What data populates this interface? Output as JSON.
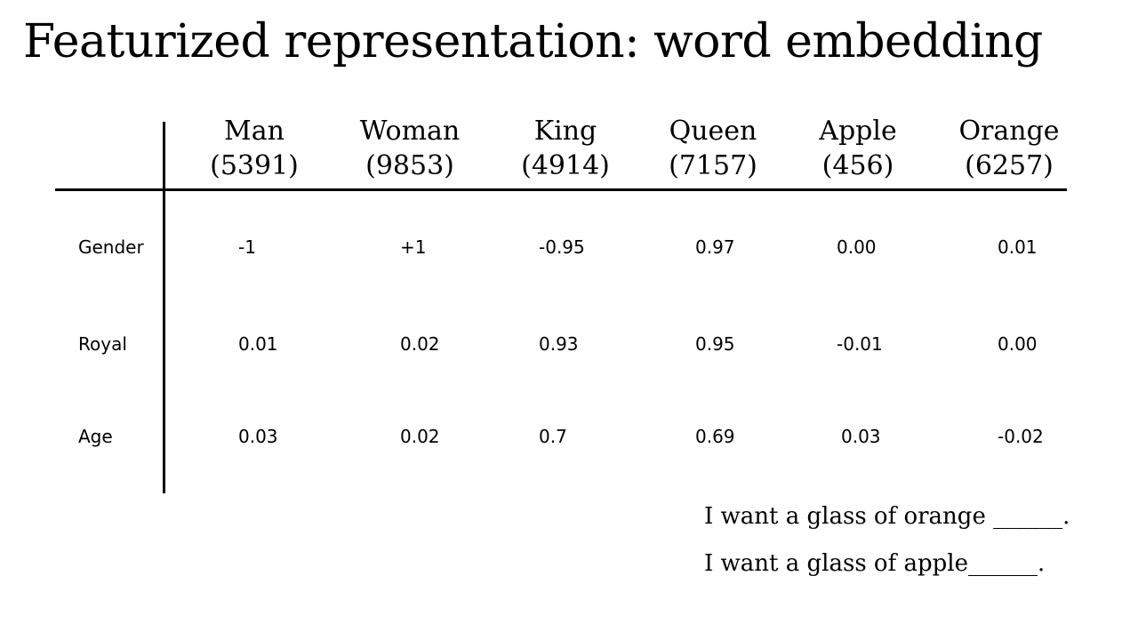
{
  "title": "Featurized representation: word embedding",
  "columns": [
    {
      "word": "Man",
      "index": "(5391)"
    },
    {
      "word": "Woman",
      "index": "(9853)"
    },
    {
      "word": "King",
      "index": "(4914)"
    },
    {
      "word": "Queen",
      "index": "(7157)"
    },
    {
      "word": "Apple",
      "index": "(456)"
    },
    {
      "word": "Orange",
      "index": "(6257)"
    }
  ],
  "rows": [
    {
      "label": "Gender",
      "values": [
        "-1",
        "+1",
        "-0.95",
        "0.97",
        "0.00",
        "0.01"
      ]
    },
    {
      "label": "Royal",
      "values": [
        "0.01",
        "0.02",
        "0.93",
        "0.95",
        "-0.01",
        "0.00"
      ]
    },
    {
      "label": "Age",
      "values": [
        "0.03",
        "0.02",
        "0.7",
        "0.69",
        "0.03",
        "-0.02"
      ]
    }
  ],
  "sentences": [
    "I want a glass of orange ______.",
    "I want a glass of apple______."
  ]
}
